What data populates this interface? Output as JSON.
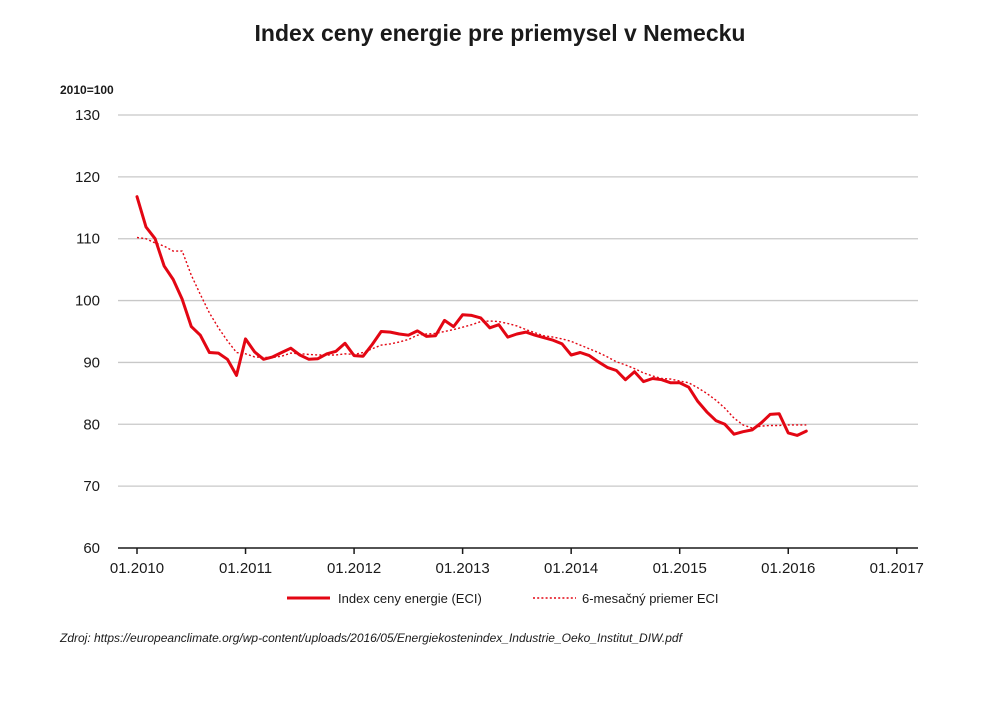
{
  "chart_data": {
    "type": "line",
    "title": "Index ceny energie pre priemysel v Nemecku",
    "unit_label": "2010=100",
    "ylim": [
      60,
      130
    ],
    "y_ticks": [
      "60",
      "70",
      "80",
      "90",
      "100",
      "110",
      "120",
      "130"
    ],
    "x_ticks": [
      "01.2010",
      "01.2011",
      "01.2012",
      "01.2013",
      "01.2014",
      "01.2015",
      "01.2016",
      "01.2017"
    ],
    "x_range_months": [
      0,
      84
    ],
    "grid": "horizontal",
    "legend_position": "bottom",
    "series": [
      {
        "name": "Index ceny energie (ECI)",
        "style": "solid",
        "color": "#e30613",
        "x": [
          "01.2010",
          "02.2010",
          "03.2010",
          "04.2010",
          "05.2010",
          "06.2010",
          "07.2010",
          "08.2010",
          "09.2010",
          "10.2010",
          "11.2010",
          "12.2010",
          "01.2011",
          "02.2011",
          "03.2011",
          "04.2011",
          "05.2011",
          "06.2011",
          "07.2011",
          "08.2011",
          "09.2011",
          "10.2011",
          "11.2011",
          "12.2011",
          "01.2012",
          "02.2012",
          "03.2012",
          "04.2012",
          "05.2012",
          "06.2012",
          "07.2012",
          "08.2012",
          "09.2012",
          "10.2012",
          "11.2012",
          "12.2012",
          "01.2013",
          "02.2013",
          "03.2013",
          "04.2013",
          "05.2013",
          "06.2013",
          "07.2013",
          "08.2013",
          "09.2013",
          "10.2013",
          "11.2013",
          "12.2013",
          "01.2014",
          "02.2014",
          "03.2014",
          "04.2014",
          "05.2014",
          "06.2014",
          "07.2014",
          "08.2014",
          "09.2014",
          "10.2014",
          "11.2014",
          "12.2014",
          "01.2015",
          "02.2015",
          "03.2015",
          "04.2015",
          "05.2015",
          "06.2015",
          "07.2015",
          "08.2015",
          "09.2015",
          "10.2015",
          "11.2015",
          "12.2015",
          "01.2016",
          "02.2016",
          "03.2016"
        ],
        "values": [
          116.8,
          111.9,
          110.0,
          105.6,
          103.4,
          100.2,
          95.8,
          94.4,
          91.6,
          91.5,
          90.5,
          87.9,
          93.8,
          91.7,
          90.5,
          90.9,
          91.6,
          92.3,
          91.2,
          90.5,
          90.6,
          91.4,
          91.8,
          93.1,
          91.1,
          91.0,
          92.9,
          95.0,
          94.9,
          94.6,
          94.4,
          95.1,
          94.2,
          94.3,
          96.8,
          95.8,
          97.7,
          97.6,
          97.2,
          95.6,
          96.1,
          94.1,
          94.6,
          94.9,
          94.4,
          94.0,
          93.6,
          93.0,
          91.2,
          91.6,
          91.1,
          90.1,
          89.2,
          88.7,
          87.2,
          88.5,
          86.9,
          87.4,
          87.2,
          86.7,
          86.7,
          86.0,
          83.7,
          82.0,
          80.6,
          80.0,
          78.4,
          78.8,
          79.1,
          80.2,
          81.6,
          81.7,
          78.6,
          78.2,
          78.9
        ]
      },
      {
        "name": "6-mesačný priemer ECI",
        "style": "dotted",
        "color": "#e30613",
        "x": [
          "01.2010",
          "02.2010",
          "03.2010",
          "04.2010",
          "05.2010",
          "06.2010",
          "07.2010",
          "08.2010",
          "09.2010",
          "10.2010",
          "11.2010",
          "12.2010",
          "01.2011",
          "02.2011",
          "03.2011",
          "04.2011",
          "05.2011",
          "06.2011",
          "07.2011",
          "08.2011",
          "09.2011",
          "10.2011",
          "11.2011",
          "12.2011",
          "01.2012",
          "02.2012",
          "03.2012",
          "04.2012",
          "05.2012",
          "06.2012",
          "07.2012",
          "08.2012",
          "09.2012",
          "10.2012",
          "11.2012",
          "12.2012",
          "01.2013",
          "02.2013",
          "03.2013",
          "04.2013",
          "05.2013",
          "06.2013",
          "07.2013",
          "08.2013",
          "09.2013",
          "10.2013",
          "11.2013",
          "12.2013",
          "01.2014",
          "02.2014",
          "03.2014",
          "04.2014",
          "05.2014",
          "06.2014",
          "07.2014",
          "08.2014",
          "09.2014",
          "10.2014",
          "11.2014",
          "12.2014",
          "01.2015",
          "02.2015",
          "03.2015",
          "04.2015",
          "05.2015",
          "06.2015",
          "07.2015",
          "08.2015",
          "09.2015",
          "10.2015",
          "11.2015",
          "12.2015",
          "01.2016",
          "02.2016",
          "03.2016"
        ],
        "values": [
          110.2,
          110.0,
          109.3,
          108.8,
          108.0,
          108.0,
          104.1,
          101.0,
          98.0,
          95.6,
          93.5,
          91.6,
          91.4,
          90.9,
          90.8,
          90.8,
          91.0,
          91.5,
          91.4,
          91.3,
          91.2,
          91.2,
          91.2,
          91.4,
          91.3,
          91.6,
          92.2,
          92.8,
          93.0,
          93.3,
          93.7,
          94.4,
          94.6,
          94.7,
          95.0,
          95.3,
          95.7,
          96.1,
          96.6,
          96.7,
          96.6,
          96.3,
          95.9,
          95.3,
          94.8,
          94.3,
          94.1,
          93.8,
          93.4,
          92.8,
          92.2,
          91.6,
          90.9,
          90.1,
          89.6,
          89.0,
          88.3,
          87.8,
          87.4,
          87.3,
          87.0,
          86.7,
          85.9,
          85.0,
          83.9,
          82.6,
          81.0,
          79.9,
          79.4,
          79.7,
          79.8,
          79.8,
          79.9,
          79.9,
          79.9
        ]
      }
    ]
  },
  "source_note": "Zdroj: https://europeanclimate.org/wp-content/uploads/2016/05/Energiekostenindex_Industrie_Oeko_Institut_DIW.pdf"
}
